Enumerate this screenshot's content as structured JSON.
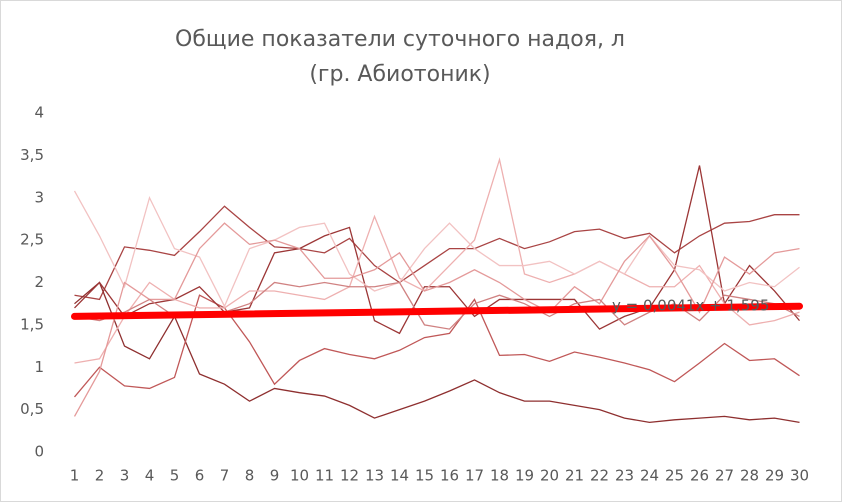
{
  "chart_data": {
    "type": "line",
    "title": [
      "Общие показатели суточного надоя, л",
      "(гр. Абиотоник)"
    ],
    "categories": [
      "1",
      "2",
      "3",
      "4",
      "5",
      "6",
      "7",
      "8",
      "9",
      "10",
      "11",
      "12",
      "13",
      "14",
      "15",
      "16",
      "17",
      "18",
      "19",
      "20",
      "21",
      "22",
      "23",
      "24",
      "25",
      "26",
      "27",
      "28",
      "29",
      "30"
    ],
    "ylim": [
      0,
      4
    ],
    "yticks": [
      0,
      {
        "value": 0.5,
        "label": "0,5"
      },
      1,
      {
        "value": 1.5,
        "label": "1,5"
      },
      2,
      {
        "value": 2.5,
        "label": "2,5"
      },
      3,
      {
        "value": 3.5,
        "label": "3,5"
      },
      4
    ],
    "grid": false,
    "series": [
      {
        "color": "#a94444",
        "values": [
          1.85,
          1.8,
          2.42,
          2.38,
          2.32,
          2.6,
          2.9,
          2.65,
          2.42,
          2.4,
          2.35,
          2.52,
          2.2,
          2.0,
          2.2,
          2.4,
          2.4,
          2.52,
          2.4,
          2.48,
          2.6,
          2.63,
          2.52,
          2.58,
          2.35,
          2.55,
          2.7,
          2.72,
          2.8,
          2.8
        ]
      },
      {
        "color": "#8e2f2f",
        "values": [
          1.75,
          2.0,
          1.25,
          1.1,
          1.6,
          0.92,
          0.8,
          0.6,
          0.75,
          0.7,
          0.66,
          0.55,
          0.4,
          0.5,
          0.6,
          0.72,
          0.85,
          0.7,
          0.6,
          0.6,
          0.55,
          0.5,
          0.4,
          0.35,
          0.38,
          0.4,
          0.42,
          0.38,
          0.4,
          0.35
        ]
      },
      {
        "color": "#c05858",
        "values": [
          0.65,
          1.0,
          0.78,
          0.75,
          0.88,
          1.85,
          1.7,
          1.3,
          0.8,
          1.08,
          1.22,
          1.15,
          1.1,
          1.2,
          1.35,
          1.4,
          1.8,
          1.14,
          1.15,
          1.07,
          1.18,
          1.12,
          1.05,
          0.97,
          0.83,
          1.05,
          1.28,
          1.08,
          1.1,
          0.9
        ]
      },
      {
        "color": "#9c3636",
        "values": [
          1.7,
          2.0,
          1.6,
          1.75,
          1.8,
          1.95,
          1.65,
          1.7,
          2.35,
          2.4,
          2.55,
          2.65,
          1.55,
          1.4,
          1.95,
          1.95,
          1.6,
          1.8,
          1.8,
          1.8,
          1.8,
          1.45,
          1.6,
          1.7,
          2.15,
          3.38,
          1.75,
          2.2,
          1.9,
          1.55
        ]
      },
      {
        "color": "#eeb0b0",
        "values": [
          1.05,
          1.1,
          1.6,
          2.0,
          1.8,
          1.7,
          1.7,
          1.9,
          1.9,
          1.85,
          1.8,
          1.95,
          2.78,
          2.05,
          1.9,
          2.2,
          2.5,
          3.45,
          2.1,
          2.0,
          2.1,
          2.25,
          2.1,
          1.95,
          1.95,
          2.2,
          1.75,
          1.5,
          1.55,
          1.65
        ]
      },
      {
        "color": "#f2c2c2",
        "values": [
          3.08,
          2.55,
          1.95,
          3.0,
          2.4,
          2.3,
          1.72,
          2.4,
          2.5,
          2.65,
          2.7,
          2.1,
          1.9,
          2.0,
          2.4,
          2.7,
          2.4,
          2.2,
          2.2,
          2.25,
          2.1,
          2.25,
          2.1,
          2.55,
          2.2,
          2.15,
          1.9,
          2.0,
          1.95,
          2.18
        ]
      },
      {
        "color": "#e49a9a",
        "values": [
          0.42,
          0.95,
          2.0,
          1.8,
          1.8,
          2.4,
          2.7,
          2.45,
          2.5,
          2.4,
          2.05,
          2.05,
          2.15,
          2.35,
          1.9,
          2.0,
          2.15,
          2.0,
          1.8,
          1.65,
          1.95,
          1.75,
          2.25,
          2.55,
          2.15,
          1.65,
          2.3,
          2.1,
          2.35,
          2.4
        ]
      },
      {
        "color": "#d08282",
        "values": [
          1.6,
          1.55,
          1.65,
          1.8,
          1.6,
          1.6,
          1.65,
          1.75,
          2.0,
          1.95,
          2.0,
          1.95,
          1.95,
          2.0,
          1.5,
          1.45,
          1.75,
          1.85,
          1.75,
          1.6,
          1.75,
          1.8,
          1.5,
          1.65,
          1.75,
          1.55,
          1.85,
          1.8,
          1.75,
          1.6
        ]
      }
    ],
    "trendline": {
      "color": "#ff0000",
      "values": [
        1.6,
        1.72
      ]
    },
    "annotation": "y = 0,0041x + 1,595"
  }
}
